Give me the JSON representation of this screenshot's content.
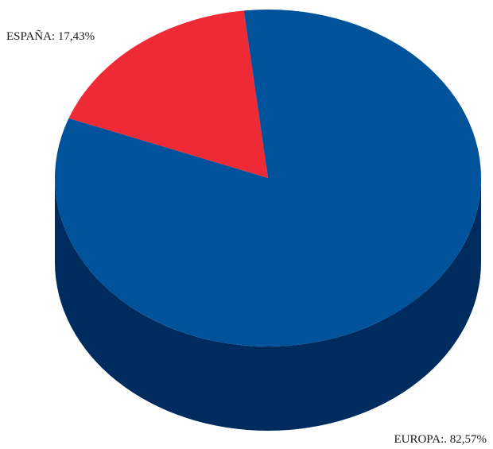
{
  "chart_data": {
    "type": "pie",
    "style": "3d",
    "categories": [
      "ESPAÑA",
      "EUROPA"
    ],
    "values": [
      17.43,
      82.57
    ],
    "labels": [
      "ESPAÑA: 17,43%",
      "EUROPA:. 82,57%"
    ],
    "colors": {
      "ESPAÑA": "#ee2a37",
      "EUROPA": "#00539b",
      "EUROPA_side": "#002b5e"
    },
    "title": "",
    "legend": "none"
  }
}
